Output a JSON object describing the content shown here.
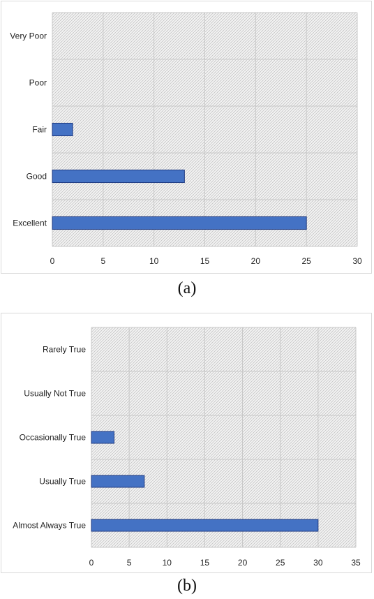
{
  "colors": {
    "bar_fill": "#4472c4",
    "bar_stroke": "#1f3a80",
    "grid": "#c8c8c8",
    "plot_background": "#f2f2f2",
    "hatch": "#bdbdbd"
  },
  "chart_data": [
    {
      "type": "bar",
      "orientation": "horizontal",
      "title": "",
      "xlabel": "",
      "ylabel": "",
      "categories": [
        "Excellent",
        "Good",
        "Fair",
        "Poor",
        "Very Poor"
      ],
      "values": [
        25,
        13,
        2,
        0,
        0
      ],
      "xlim": [
        0,
        30
      ],
      "xticks": [
        "0",
        "5",
        "10",
        "15",
        "20",
        "25",
        "30"
      ],
      "grid": true,
      "legend": "none"
    },
    {
      "type": "bar",
      "orientation": "horizontal",
      "title": "",
      "xlabel": "",
      "ylabel": "",
      "categories": [
        "Almost Always True",
        "Usually True",
        "Occasionally True",
        "Usually Not True",
        "Rarely True"
      ],
      "values": [
        30,
        7,
        3,
        0,
        0
      ],
      "xlim": [
        0,
        35
      ],
      "xticks": [
        "0",
        "5",
        "10",
        "15",
        "20",
        "25",
        "30",
        "35"
      ],
      "grid": true,
      "legend": "none"
    }
  ],
  "captions": {
    "a": "(a)",
    "b": "(b)"
  }
}
